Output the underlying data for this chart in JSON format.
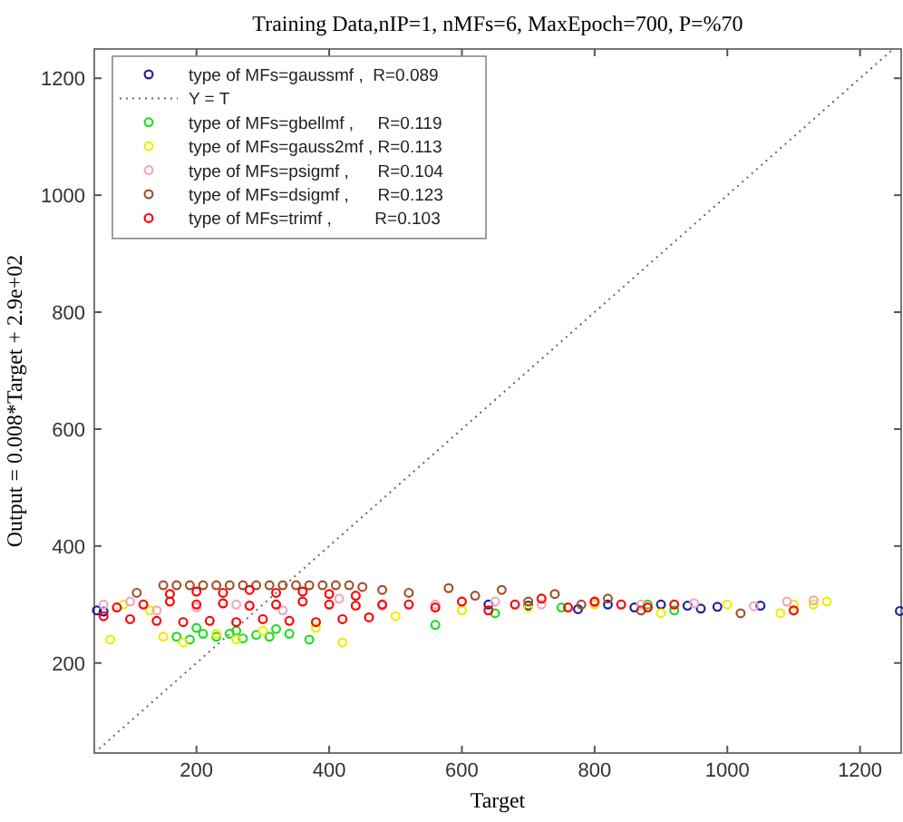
{
  "chart_data": {
    "type": "scatter",
    "marker": "circle",
    "title": "Training Data,nIP=1, nMFs=6, MaxEpoch=700, P=%70",
    "xlabel": "Target",
    "ylabel": "Output  = 0.008*Target + 2.9e+02",
    "xlim": [
      46,
      1262
    ],
    "ylim": [
      46,
      1250
    ],
    "xticks": [
      200,
      400,
      600,
      800,
      1000,
      1200
    ],
    "yticks": [
      200,
      400,
      600,
      800,
      1000,
      1200
    ],
    "grid": false,
    "legend": "top left",
    "series": [
      {
        "name": "type of MFs=gaussmf ,  R=0.089",
        "color": "#2020a0",
        "x": [
          50,
          60,
          640,
          700,
          775,
          820,
          860,
          900,
          940,
          960,
          985,
          1050,
          1260
        ],
        "values": [
          290,
          288,
          300,
          298,
          292,
          300,
          295,
          300,
          298,
          293,
          296,
          298,
          289
        ]
      },
      {
        "name": "Y = T",
        "type": "line",
        "marker": "none",
        "line_style": "dotted",
        "color": "#666666",
        "x": [
          46,
          1250
        ],
        "values": [
          46,
          1250
        ]
      },
      {
        "name": "type of MFs=gbellmf ,     R=0.119",
        "color": "#22dd22",
        "x": [
          170,
          190,
          210,
          230,
          250,
          270,
          290,
          310,
          340,
          370,
          200,
          260,
          320,
          560,
          650,
          750,
          880,
          920
        ],
        "values": [
          245,
          240,
          250,
          245,
          250,
          242,
          248,
          245,
          250,
          240,
          260,
          255,
          258,
          265,
          285,
          295,
          300,
          290
        ]
      },
      {
        "name": "type of MFs=gauss2mf , R=0.113",
        "color": "#eeee00",
        "x": [
          70,
          90,
          130,
          150,
          180,
          230,
          260,
          300,
          380,
          420,
          500,
          600,
          700,
          800,
          900,
          1000,
          1080,
          1130,
          1150,
          1100
        ],
        "values": [
          240,
          300,
          290,
          245,
          235,
          250,
          240,
          255,
          260,
          235,
          280,
          290,
          295,
          300,
          285,
          300,
          285,
          300,
          305,
          300
        ]
      },
      {
        "name": "type of MFs=psigmf ,      R=0.104",
        "color": "#f0a8c0",
        "x": [
          60,
          100,
          140,
          200,
          260,
          330,
          415,
          480,
          560,
          650,
          720,
          800,
          870,
          950,
          1040,
          1090,
          1130
        ],
        "values": [
          300,
          305,
          290,
          295,
          300,
          290,
          310,
          298,
          300,
          305,
          300,
          303,
          300,
          302,
          297,
          305,
          307
        ]
      },
      {
        "name": "type of MFs=dsigmf ,      R=0.123",
        "color": "#a0522d",
        "x": [
          110,
          150,
          170,
          190,
          210,
          230,
          250,
          270,
          290,
          310,
          330,
          350,
          370,
          390,
          410,
          430,
          450,
          480,
          520,
          580,
          620,
          660,
          700,
          740,
          780,
          820,
          870,
          1020
        ],
        "values": [
          320,
          333,
          333,
          333,
          333,
          333,
          333,
          333,
          333,
          333,
          333,
          333,
          333,
          333,
          333,
          333,
          330,
          325,
          320,
          328,
          315,
          325,
          305,
          318,
          300,
          310,
          290,
          285
        ]
      },
      {
        "name": "type of MFs=trimf ,         R=0.103",
        "color": "#ff0000",
        "x": [
          60,
          100,
          140,
          180,
          220,
          260,
          300,
          340,
          380,
          420,
          460,
          80,
          120,
          160,
          200,
          240,
          280,
          320,
          360,
          400,
          440,
          480,
          160,
          200,
          240,
          280,
          320,
          360,
          400,
          440,
          520,
          560,
          600,
          640,
          680,
          720,
          760,
          800,
          840,
          880,
          920,
          1100
        ],
        "values": [
          280,
          275,
          272,
          270,
          272,
          270,
          275,
          272,
          270,
          275,
          278,
          295,
          300,
          305,
          300,
          302,
          298,
          300,
          305,
          300,
          298,
          300,
          318,
          322,
          320,
          325,
          320,
          322,
          318,
          315,
          300,
          295,
          305,
          290,
          300,
          310,
          295,
          305,
          300,
          295,
          300,
          290
        ]
      }
    ]
  }
}
